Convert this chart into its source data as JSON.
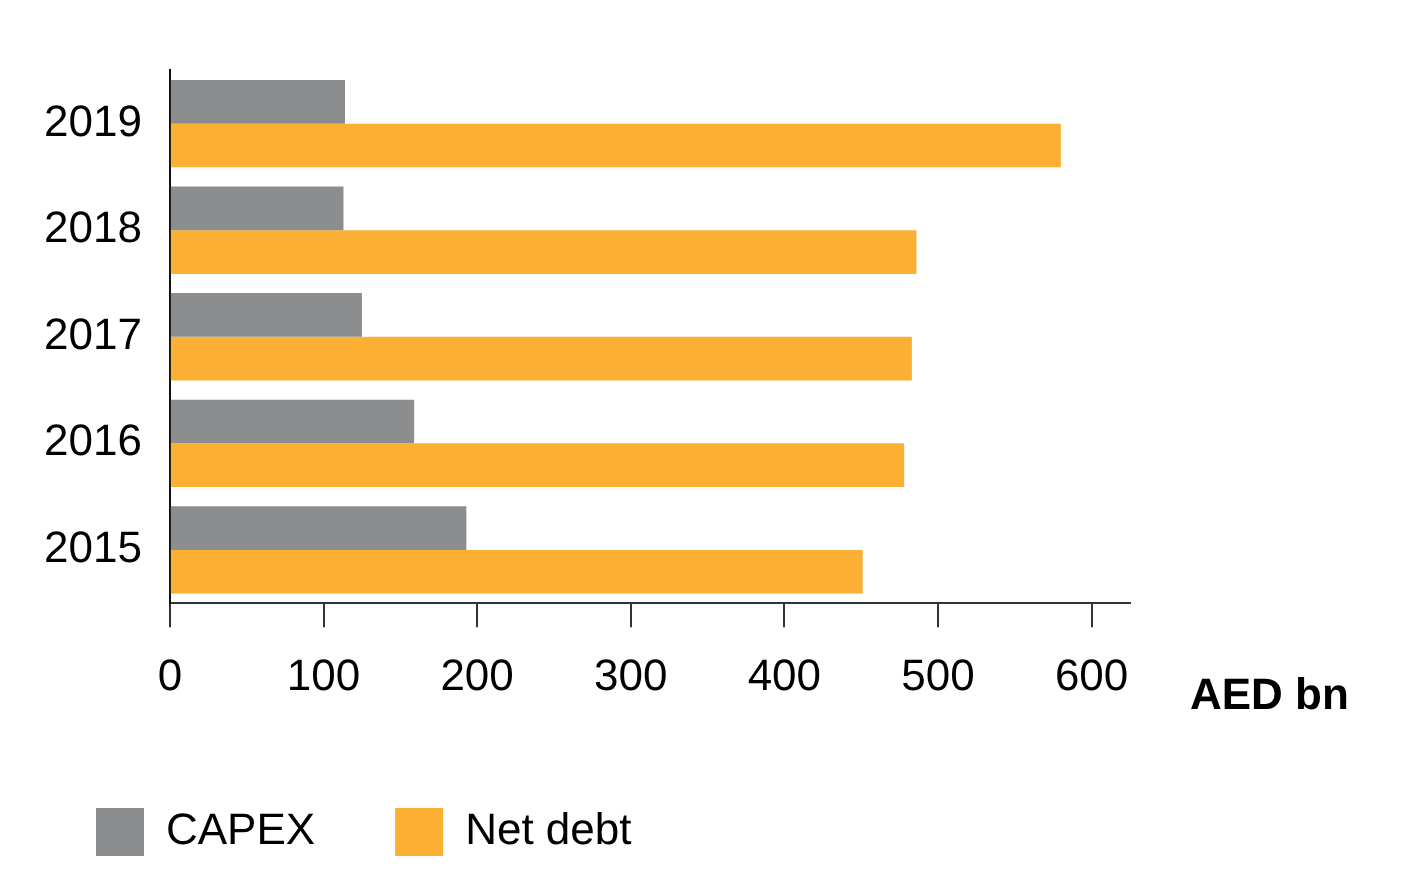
{
  "chart_data": {
    "type": "bar",
    "orientation": "horizontal",
    "xlabel": "AED bn",
    "categories": [
      "2019",
      "2018",
      "2017",
      "2016",
      "2015"
    ],
    "series": [
      {
        "name": "CAPEX",
        "color": "#8c8d8f",
        "values": [
          114,
          113,
          125,
          159,
          193
        ]
      },
      {
        "name": "Net debt",
        "color": "#fbb034",
        "values": [
          580,
          486,
          483,
          478,
          451
        ]
      }
    ],
    "xlim": [
      0,
      625
    ],
    "xticks": [
      0,
      100,
      200,
      300,
      400,
      500,
      600
    ],
    "grid": false,
    "legend": "bottom left"
  }
}
